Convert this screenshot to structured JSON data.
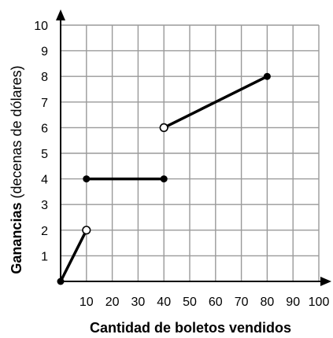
{
  "chart_data": {
    "type": "line",
    "xlabel": "Cantidad de boletos vendidos",
    "ylabel_bold": "Ganancias",
    "ylabel_rest": "(decenas de dólares)",
    "xlim": [
      0,
      100
    ],
    "ylim": [
      0,
      10
    ],
    "x_ticks": [
      10,
      20,
      30,
      40,
      50,
      60,
      70,
      80,
      90,
      100
    ],
    "y_ticks": [
      1,
      2,
      3,
      4,
      5,
      6,
      7,
      8,
      9,
      10
    ],
    "grid": true,
    "segments": [
      {
        "start": {
          "x": 0,
          "y": 0,
          "closed": true
        },
        "end": {
          "x": 10,
          "y": 2,
          "closed": false
        }
      },
      {
        "start": {
          "x": 10,
          "y": 4,
          "closed": true
        },
        "end": {
          "x": 40,
          "y": 4,
          "closed": true
        }
      },
      {
        "start": {
          "x": 40,
          "y": 6,
          "closed": false
        },
        "end": {
          "x": 80,
          "y": 8,
          "closed": true
        }
      }
    ],
    "colors": {
      "grid": "#9a9a9a",
      "line": "#000000",
      "open_point_fill": "#ffffff"
    }
  }
}
